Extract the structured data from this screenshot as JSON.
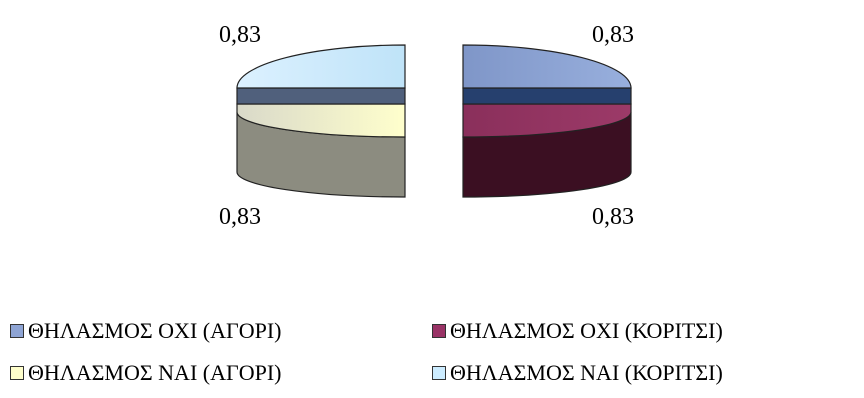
{
  "chart_data": {
    "type": "pie",
    "style": "3d-exploded",
    "series": [
      {
        "name": "ΘΗΛΑΣΜΟΣ ΟΧΙ (ΑΓΟΡΙ)",
        "value": 0.83,
        "label": "0,83",
        "color": "#8ea4d4"
      },
      {
        "name": "ΘΗΛΑΣΜΟΣ ΟΧΙ (ΚΟΡΙΤΣΙ)",
        "value": 0.83,
        "label": "0,83",
        "color": "#993366"
      },
      {
        "name": "ΘΗΛΑΣΜΟΣ ΝΑΙ (ΑΓΟΡΙ)",
        "value": 0.83,
        "label": "0,83",
        "color": "#ffffcc"
      },
      {
        "name": "ΘΗΛΑΣΜΟΣ ΝΑΙ (ΚΟΡΙΤΣΙ)",
        "value": 0.83,
        "label": "0,83",
        "color": "#ccecff"
      }
    ],
    "legend_position": "bottom"
  }
}
